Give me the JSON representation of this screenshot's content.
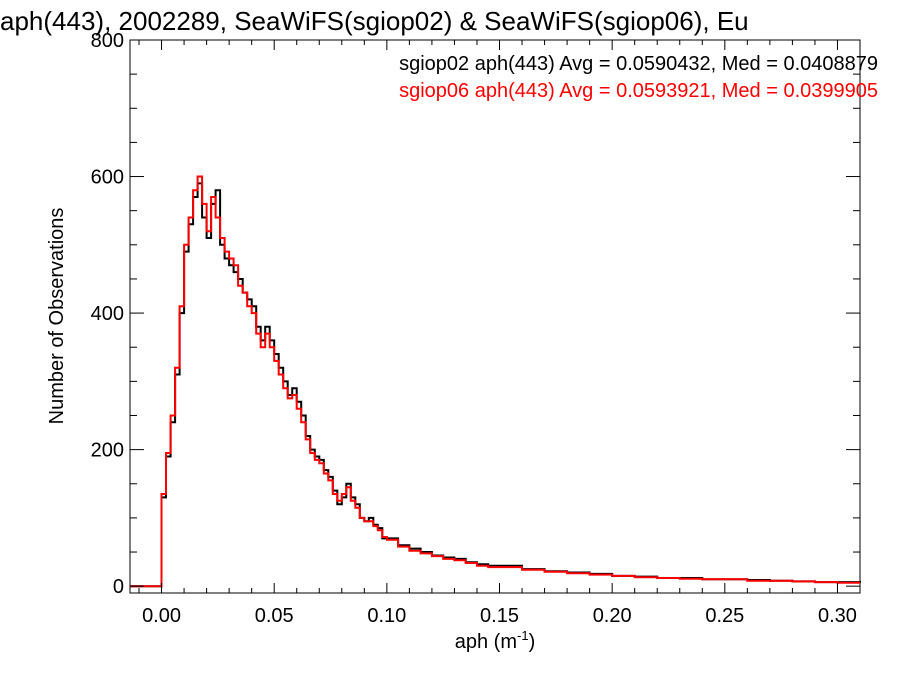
{
  "chart_data": {
    "type": "line",
    "title": "aph(443), 2002289, SeaWiFS(sgiop02) & SeaWiFS(sgiop06), Eu",
    "xlabel": "aph (m",
    "xlabel_sup": "-1",
    "xlabel_close": ")",
    "ylabel": "Number of Observations",
    "xlim": [
      -0.014,
      0.31
    ],
    "ylim": [
      -10,
      800
    ],
    "xticks": [
      0.0,
      0.05,
      0.1,
      0.15,
      0.2,
      0.25,
      0.3
    ],
    "xtick_labels": [
      "0.00",
      "0.05",
      "0.10",
      "0.15",
      "0.20",
      "0.25",
      "0.30"
    ],
    "yticks": [
      0,
      200,
      400,
      600,
      800
    ],
    "ytick_labels": [
      "0",
      "200",
      "400",
      "600",
      "800"
    ],
    "grid": false,
    "legend_placement": "top-right",
    "series": [
      {
        "name": "sgiop02 aph(443) Avg = 0.0590432, Med = 0.0408879",
        "color": "#000000",
        "x": [
          -0.014,
          -0.001,
          0.0,
          0.002,
          0.004,
          0.006,
          0.008,
          0.01,
          0.012,
          0.014,
          0.016,
          0.018,
          0.02,
          0.022,
          0.024,
          0.026,
          0.028,
          0.03,
          0.032,
          0.034,
          0.036,
          0.038,
          0.04,
          0.042,
          0.044,
          0.046,
          0.048,
          0.05,
          0.052,
          0.054,
          0.056,
          0.058,
          0.06,
          0.062,
          0.064,
          0.066,
          0.068,
          0.07,
          0.072,
          0.074,
          0.076,
          0.078,
          0.08,
          0.082,
          0.084,
          0.086,
          0.088,
          0.09,
          0.092,
          0.094,
          0.096,
          0.098,
          0.1,
          0.105,
          0.11,
          0.115,
          0.12,
          0.125,
          0.13,
          0.135,
          0.14,
          0.145,
          0.15,
          0.16,
          0.17,
          0.18,
          0.19,
          0.2,
          0.21,
          0.22,
          0.23,
          0.24,
          0.25,
          0.26,
          0.27,
          0.28,
          0.29,
          0.3,
          0.31
        ],
        "values": [
          0,
          0,
          130,
          190,
          240,
          310,
          400,
          490,
          530,
          570,
          590,
          540,
          510,
          560,
          580,
          500,
          480,
          470,
          460,
          450,
          430,
          420,
          410,
          380,
          360,
          380,
          360,
          340,
          320,
          300,
          280,
          290,
          270,
          250,
          220,
          200,
          190,
          185,
          170,
          160,
          140,
          120,
          130,
          150,
          130,
          120,
          100,
          95,
          100,
          90,
          85,
          70,
          70,
          60,
          55,
          50,
          45,
          42,
          40,
          35,
          32,
          30,
          30,
          25,
          22,
          20,
          18,
          15,
          14,
          12,
          12,
          10,
          10,
          9,
          8,
          7,
          6,
          6,
          5
        ]
      },
      {
        "name": "sgiop06 aph(443) Avg = 0.0593921, Med = 0.0399905",
        "color": "#ff0000",
        "x": [
          -0.014,
          -0.001,
          0.0,
          0.002,
          0.004,
          0.006,
          0.008,
          0.01,
          0.012,
          0.014,
          0.016,
          0.018,
          0.02,
          0.022,
          0.024,
          0.026,
          0.028,
          0.03,
          0.032,
          0.034,
          0.036,
          0.038,
          0.04,
          0.042,
          0.044,
          0.046,
          0.048,
          0.05,
          0.052,
          0.054,
          0.056,
          0.058,
          0.06,
          0.062,
          0.064,
          0.066,
          0.068,
          0.07,
          0.072,
          0.074,
          0.076,
          0.078,
          0.08,
          0.082,
          0.084,
          0.086,
          0.088,
          0.09,
          0.092,
          0.094,
          0.096,
          0.098,
          0.1,
          0.105,
          0.11,
          0.115,
          0.12,
          0.125,
          0.13,
          0.135,
          0.14,
          0.145,
          0.15,
          0.16,
          0.17,
          0.18,
          0.19,
          0.2,
          0.21,
          0.22,
          0.23,
          0.24,
          0.25,
          0.26,
          0.27,
          0.28,
          0.29,
          0.3,
          0.31
        ],
        "values": [
          0,
          0,
          135,
          195,
          250,
          320,
          410,
          500,
          540,
          580,
          600,
          560,
          520,
          570,
          540,
          510,
          490,
          480,
          470,
          440,
          430,
          410,
          400,
          370,
          350,
          370,
          350,
          330,
          310,
          290,
          275,
          280,
          260,
          240,
          215,
          195,
          185,
          180,
          165,
          155,
          135,
          125,
          135,
          145,
          125,
          115,
          100,
          95,
          95,
          88,
          82,
          72,
          68,
          58,
          52,
          48,
          44,
          40,
          38,
          34,
          30,
          28,
          28,
          24,
          21,
          19,
          17,
          15,
          13,
          12,
          11,
          10,
          10,
          8,
          8,
          7,
          6,
          5,
          5
        ]
      }
    ]
  }
}
